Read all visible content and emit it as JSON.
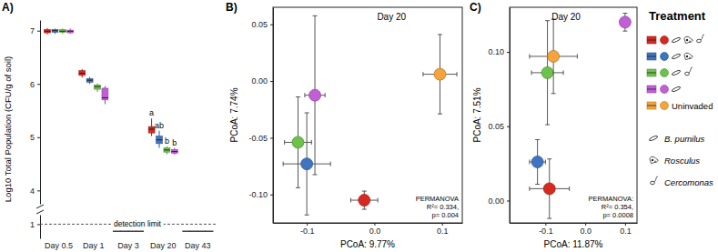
{
  "chart_data": [
    {
      "type": "box",
      "label": "A)",
      "ylabel": "Log10 Total Population (CFU/g of soil)",
      "categories": [
        "Day 0.5",
        "Day 1",
        "Day 3",
        "Day 20",
        "Day 43"
      ],
      "ylim": [
        0.7,
        7.2
      ],
      "axis_break": [
        1.2,
        3.75
      ],
      "yticks": [
        1,
        4,
        5,
        6,
        7
      ],
      "detection_limit": {
        "value": 1,
        "label": "detection limit"
      },
      "series": [
        {
          "color": "#d62a20",
          "boxes": [
            {
              "low": 6.93,
              "q1": 6.96,
              "median": 6.99,
              "q3": 7.02,
              "high": 7.05
            },
            {
              "low": 6.12,
              "q1": 6.16,
              "median": 6.2,
              "q3": 6.25,
              "high": 6.28
            },
            null,
            {
              "low": 5.02,
              "q1": 5.08,
              "median": 5.15,
              "q3": 5.2,
              "high": 5.35
            },
            null
          ],
          "below_limit": [
            null,
            null,
            0.85,
            null,
            0.85
          ],
          "group_letters": [
            null,
            null,
            null,
            "a",
            null
          ]
        },
        {
          "color": "#3f74c1",
          "boxes": [
            {
              "low": 6.94,
              "q1": 6.97,
              "median": 7.0,
              "q3": 7.02,
              "high": 7.04
            },
            {
              "low": 6.0,
              "q1": 6.03,
              "median": 6.07,
              "q3": 6.1,
              "high": 6.13
            },
            null,
            {
              "low": 4.8,
              "q1": 4.88,
              "median": 4.95,
              "q3": 5.02,
              "high": 5.12
            },
            null
          ],
          "below_limit": [
            null,
            null,
            0.85,
            null,
            0.85
          ],
          "group_letters": [
            null,
            null,
            null,
            "ab",
            null
          ]
        },
        {
          "color": "#6dc24b",
          "boxes": [
            {
              "low": 6.94,
              "q1": 6.97,
              "median": 6.99,
              "q3": 7.02,
              "high": 7.04
            },
            {
              "low": 5.85,
              "q1": 5.9,
              "median": 5.95,
              "q3": 5.98,
              "high": 6.01
            },
            null,
            {
              "low": 4.68,
              "q1": 4.72,
              "median": 4.76,
              "q3": 4.8,
              "high": 4.83
            },
            null
          ],
          "below_limit": [
            null,
            null,
            0.85,
            null,
            0.85
          ],
          "group_letters": [
            null,
            null,
            null,
            "b",
            null
          ]
        },
        {
          "color": "#c25fd6",
          "boxes": [
            {
              "low": 6.94,
              "q1": 6.96,
              "median": 6.99,
              "q3": 7.01,
              "high": 7.04
            },
            {
              "low": 5.62,
              "q1": 5.7,
              "median": 5.74,
              "q3": 5.92,
              "high": 5.96
            },
            null,
            {
              "low": 4.67,
              "q1": 4.7,
              "median": 4.73,
              "q3": 4.77,
              "high": 4.8
            },
            null
          ],
          "below_limit": [
            null,
            null,
            0.85,
            null,
            0.85
          ],
          "group_letters": [
            null,
            null,
            null,
            "b",
            null
          ]
        }
      ]
    },
    {
      "type": "scatter",
      "label": "B)",
      "annotation": "Day 20",
      "stats": [
        "PERMANOVA",
        "R²= 0.334,",
        "p= 0.004"
      ],
      "xlabel": "PCoA: 9.77%",
      "ylabel": "PCoA: 7.74%",
      "xlim": [
        -0.15,
        0.13
      ],
      "ylim": [
        -0.125,
        0.065
      ],
      "xticks": [
        -0.1,
        {
          "value": 0,
          "label": "0.0"
        },
        0.1
      ],
      "yticks": [
        {
          "value": -0.1,
          "label": "-0.10"
        },
        -0.05,
        {
          "value": 0,
          "label": "0.00"
        },
        0.05
      ],
      "series": [
        {
          "color": "#d62a20",
          "x": [
            -0.015
          ],
          "values": [
            -0.105
          ],
          "x_error": [
            0.02
          ],
          "y_error": [
            0.008
          ]
        },
        {
          "color": "#3f74c1",
          "x": [
            -0.1
          ],
          "values": [
            -0.073
          ],
          "x_error": [
            0.035
          ],
          "y_error": [
            0.045
          ]
        },
        {
          "color": "#6dc24b",
          "x": [
            -0.113
          ],
          "values": [
            -0.054
          ],
          "x_error": [
            0.02
          ],
          "y_error": [
            0.04
          ]
        },
        {
          "color": "#c25fd6",
          "x": [
            -0.088
          ],
          "values": [
            -0.0125
          ],
          "x_error": [
            0.015
          ],
          "y_error": [
            0.07
          ]
        },
        {
          "color": "#f5a33a",
          "x": [
            0.097
          ],
          "values": [
            0.006
          ],
          "x_error": [
            0.025
          ],
          "y_error": [
            0.035
          ]
        }
      ]
    },
    {
      "type": "scatter",
      "label": "C)",
      "annotation": "Day 20",
      "stats": [
        "PERMANOVA:",
        "R²= 0.354,",
        "p= 0.0008"
      ],
      "xlabel": "PCoA: 11.87%",
      "ylabel": "PCoA: 7.51%",
      "xlim": [
        -0.19,
        0.13
      ],
      "ylim": [
        -0.015,
        0.13
      ],
      "xticks": [
        -0.1,
        {
          "value": 0,
          "label": "0.0"
        },
        0.1
      ],
      "yticks": [
        {
          "value": 0,
          "label": "0.00"
        },
        0.05,
        {
          "value": 0.1,
          "label": "0.10"
        }
      ],
      "series": [
        {
          "color": "#d62a20",
          "x": [
            -0.09
          ],
          "values": [
            0.008
          ],
          "x_error": [
            0.05
          ],
          "y_error": [
            0.02
          ]
        },
        {
          "color": "#3f74c1",
          "x": [
            -0.12
          ],
          "values": [
            0.026
          ],
          "x_error": [
            0.02
          ],
          "y_error": [
            0.015
          ]
        },
        {
          "color": "#6dc24b",
          "x": [
            -0.095
          ],
          "values": [
            0.086
          ],
          "x_error": [
            0.04
          ],
          "y_error": [
            0.035
          ]
        },
        {
          "color": "#c25fd6",
          "x": [
            0.1
          ],
          "values": [
            0.12
          ],
          "x_error": [
            0.01
          ],
          "y_error": [
            0.006
          ]
        },
        {
          "color": "#f5a33a",
          "x": [
            -0.08
          ],
          "values": [
            0.097
          ],
          "x_error": [
            0.06
          ],
          "y_error": [
            0.025
          ]
        }
      ]
    }
  ],
  "treatment_key": {
    "title": "Treatment",
    "organisms": [
      "B. pumilus",
      "Rosculus",
      "Cercomonas"
    ],
    "treatments": [
      {
        "color": "#d62a20",
        "members": [
          "B. pumilus",
          "Rosculus",
          "Cercomonas"
        ]
      },
      {
        "color": "#3f74c1",
        "members": [
          "B. pumilus",
          "Rosculus"
        ]
      },
      {
        "color": "#6dc24b",
        "members": [
          "B. pumilus",
          "Cercomonas"
        ]
      },
      {
        "color": "#c25fd6",
        "members": [
          "B. pumilus"
        ]
      },
      {
        "color": "#f5a33a",
        "members": [],
        "label": "Uninvaded"
      }
    ]
  }
}
